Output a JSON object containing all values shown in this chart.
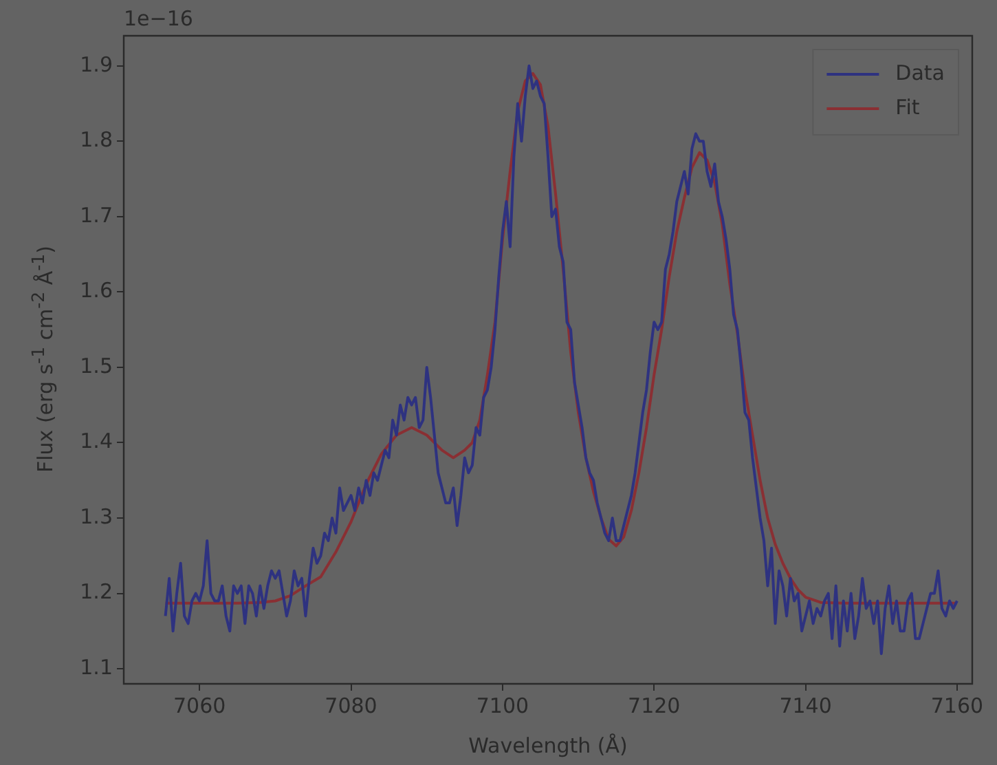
{
  "chart_data": {
    "type": "line",
    "xlabel": "Wavelength (Å)",
    "ylabel": "Flux (erg s$^{-1}$ cm$^{-2}$ Å$^{-1}$)",
    "annotations": [
      "1e−16"
    ],
    "xlim": [
      7050,
      7162
    ],
    "xticks": [
      7060,
      7080,
      7100,
      7120,
      7140,
      7160
    ],
    "ylim": [
      1.08,
      1.94
    ],
    "yticks": [
      1.1,
      1.2,
      1.3,
      1.4,
      1.5,
      1.6,
      1.7,
      1.8,
      1.9
    ],
    "legend": "top right",
    "marker": "none",
    "line_style": "solid",
    "series": [
      {
        "name": "Data",
        "color": "#2e3280",
        "x": [
          7055.5,
          7056,
          7056.5,
          7057,
          7057.5,
          7058,
          7058.5,
          7059,
          7059.5,
          7060,
          7060.5,
          7061,
          7061.5,
          7062,
          7062.5,
          7063,
          7063.5,
          7064,
          7064.5,
          7065,
          7065.5,
          7066,
          7066.5,
          7067,
          7067.5,
          7068,
          7068.5,
          7069,
          7069.5,
          7070,
          7070.5,
          7071,
          7071.5,
          7072,
          7072.5,
          7073,
          7073.5,
          7074,
          7074.5,
          7075,
          7075.5,
          7076,
          7076.5,
          7077,
          7077.5,
          7078,
          7078.5,
          7079,
          7079.5,
          7080,
          7080.5,
          7081,
          7081.5,
          7082,
          7082.5,
          7083,
          7083.5,
          7084,
          7084.5,
          7085,
          7085.5,
          7086,
          7086.5,
          7087,
          7087.5,
          7088,
          7088.5,
          7089,
          7089.5,
          7090,
          7090.5,
          7091,
          7091.5,
          7092,
          7092.5,
          7093,
          7093.5,
          7094,
          7094.5,
          7095,
          7095.5,
          7096,
          7096.5,
          7097,
          7097.5,
          7098,
          7098.5,
          7099,
          7099.5,
          7100,
          7100.5,
          7101,
          7101.5,
          7102,
          7102.5,
          7103,
          7103.5,
          7104,
          7104.5,
          7105,
          7105.5,
          7106,
          7106.5,
          7107,
          7107.5,
          7108,
          7108.5,
          7109,
          7109.5,
          7110,
          7110.5,
          7111,
          7111.5,
          7112,
          7112.5,
          7113,
          7113.5,
          7114,
          7114.5,
          7115,
          7115.5,
          7116,
          7116.5,
          7117,
          7117.5,
          7118,
          7118.5,
          7119,
          7119.5,
          7120,
          7120.5,
          7121,
          7121.5,
          7122,
          7122.5,
          7123,
          7123.5,
          7124,
          7124.5,
          7125,
          7125.5,
          7126,
          7126.5,
          7127,
          7127.5,
          7128,
          7128.5,
          7129,
          7129.5,
          7130,
          7130.5,
          7131,
          7131.5,
          7132,
          7132.5,
          7133,
          7133.5,
          7134,
          7134.5,
          7135,
          7135.5,
          7136,
          7136.5,
          7137,
          7137.5,
          7138,
          7138.5,
          7139,
          7139.5,
          7140,
          7140.5,
          7141,
          7141.5,
          7142,
          7142.5,
          7143,
          7143.5,
          7144,
          7144.5,
          7145,
          7145.5,
          7146,
          7146.5,
          7147,
          7147.5,
          7148,
          7148.5,
          7149,
          7149.5,
          7150,
          7150.5,
          7151,
          7151.5,
          7152,
          7152.5,
          7153,
          7153.5,
          7154,
          7154.5,
          7155,
          7155.5,
          7156,
          7156.5,
          7157,
          7157.5,
          7158,
          7158.5,
          7159,
          7159.5,
          7160
        ],
        "values": [
          1.17,
          1.22,
          1.15,
          1.2,
          1.24,
          1.17,
          1.16,
          1.19,
          1.2,
          1.19,
          1.21,
          1.27,
          1.2,
          1.19,
          1.19,
          1.21,
          1.17,
          1.15,
          1.21,
          1.2,
          1.21,
          1.16,
          1.21,
          1.2,
          1.17,
          1.21,
          1.18,
          1.21,
          1.23,
          1.22,
          1.23,
          1.2,
          1.17,
          1.19,
          1.23,
          1.21,
          1.22,
          1.17,
          1.22,
          1.26,
          1.24,
          1.25,
          1.28,
          1.27,
          1.3,
          1.28,
          1.34,
          1.31,
          1.32,
          1.33,
          1.31,
          1.34,
          1.32,
          1.35,
          1.33,
          1.36,
          1.35,
          1.37,
          1.39,
          1.38,
          1.43,
          1.41,
          1.45,
          1.43,
          1.46,
          1.45,
          1.46,
          1.42,
          1.43,
          1.5,
          1.46,
          1.41,
          1.36,
          1.34,
          1.32,
          1.32,
          1.34,
          1.29,
          1.33,
          1.38,
          1.36,
          1.37,
          1.42,
          1.41,
          1.46,
          1.47,
          1.5,
          1.55,
          1.62,
          1.68,
          1.72,
          1.66,
          1.78,
          1.85,
          1.8,
          1.86,
          1.9,
          1.87,
          1.88,
          1.86,
          1.85,
          1.78,
          1.7,
          1.71,
          1.66,
          1.64,
          1.56,
          1.55,
          1.48,
          1.45,
          1.42,
          1.38,
          1.36,
          1.35,
          1.32,
          1.3,
          1.28,
          1.27,
          1.3,
          1.27,
          1.27,
          1.29,
          1.31,
          1.33,
          1.36,
          1.4,
          1.44,
          1.47,
          1.52,
          1.56,
          1.55,
          1.56,
          1.63,
          1.65,
          1.68,
          1.72,
          1.74,
          1.76,
          1.73,
          1.79,
          1.81,
          1.8,
          1.8,
          1.76,
          1.74,
          1.77,
          1.72,
          1.7,
          1.67,
          1.63,
          1.57,
          1.55,
          1.5,
          1.44,
          1.43,
          1.38,
          1.34,
          1.3,
          1.27,
          1.21,
          1.26,
          1.16,
          1.23,
          1.21,
          1.17,
          1.22,
          1.19,
          1.2,
          1.15,
          1.17,
          1.19,
          1.16,
          1.18,
          1.17,
          1.19,
          1.2,
          1.14,
          1.21,
          1.13,
          1.19,
          1.15,
          1.2,
          1.14,
          1.17,
          1.22,
          1.18,
          1.19,
          1.16,
          1.19,
          1.12,
          1.18,
          1.21,
          1.16,
          1.19,
          1.15,
          1.15,
          1.19,
          1.2,
          1.14,
          1.14,
          1.16,
          1.18,
          1.2,
          1.2,
          1.23,
          1.18,
          1.17,
          1.19,
          1.18,
          1.19
        ]
      },
      {
        "name": "Fit",
        "color": "#8a2f33",
        "x": [
          7055.5,
          7060,
          7065,
          7068,
          7070,
          7072,
          7074,
          7076,
          7078,
          7080,
          7082,
          7084,
          7086,
          7088,
          7090,
          7092,
          7093.5,
          7095,
          7096,
          7097,
          7098,
          7099,
          7100,
          7101,
          7102,
          7103,
          7104,
          7105,
          7106,
          7107,
          7108,
          7109,
          7110,
          7111,
          7112,
          7113,
          7114,
          7115,
          7116,
          7117,
          7118,
          7119,
          7120,
          7121,
          7122,
          7123,
          7124,
          7125,
          7126,
          7127,
          7128,
          7129,
          7130,
          7131,
          7132,
          7133,
          7134,
          7135,
          7136,
          7137,
          7138,
          7139,
          7140,
          7142,
          7145,
          7150,
          7160
        ],
        "values": [
          1.187,
          1.187,
          1.187,
          1.188,
          1.19,
          1.197,
          1.21,
          1.222,
          1.255,
          1.295,
          1.345,
          1.385,
          1.41,
          1.42,
          1.41,
          1.39,
          1.38,
          1.39,
          1.4,
          1.43,
          1.49,
          1.56,
          1.67,
          1.76,
          1.84,
          1.88,
          1.89,
          1.875,
          1.82,
          1.73,
          1.63,
          1.52,
          1.44,
          1.38,
          1.335,
          1.3,
          1.272,
          1.263,
          1.275,
          1.31,
          1.36,
          1.42,
          1.49,
          1.55,
          1.62,
          1.68,
          1.725,
          1.765,
          1.785,
          1.775,
          1.745,
          1.69,
          1.61,
          1.545,
          1.47,
          1.41,
          1.35,
          1.3,
          1.265,
          1.24,
          1.22,
          1.205,
          1.195,
          1.188,
          1.187,
          1.187,
          1.187
        ]
      }
    ]
  }
}
